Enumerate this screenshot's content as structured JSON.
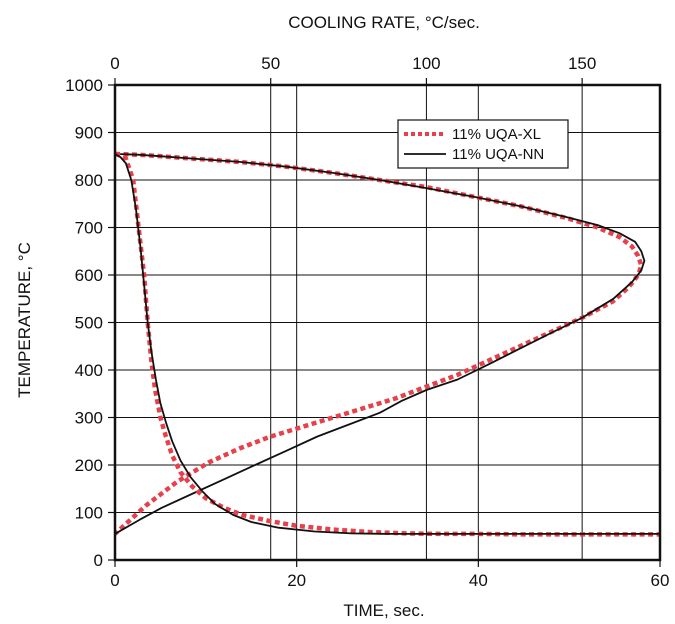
{
  "chart_data": {
    "type": "line",
    "xlabel": "TIME, sec.",
    "ylabel": "TEMPERATURE, °C",
    "x2label": "COOLING RATE, °C/sec.",
    "xlim": [
      0,
      60
    ],
    "x2lim": [
      0,
      175
    ],
    "ylim": [
      0,
      1000
    ],
    "xticks": [
      "0",
      "20",
      "40",
      "60"
    ],
    "x2ticks": [
      "0",
      "50",
      "100",
      "150"
    ],
    "yticks": [
      "0",
      "100",
      "200",
      "300",
      "400",
      "500",
      "600",
      "700",
      "800",
      "900",
      "1000"
    ],
    "grid": true,
    "legend_position": "top-right",
    "colors": {
      "xl": "#e8404a",
      "nn": "#111111"
    },
    "series": [
      {
        "name": "11% UQA-XL",
        "kind": "time",
        "style": "dotted",
        "x": [
          0,
          0.5,
          1.2,
          2.0,
          2.6,
          3.2,
          3.6,
          4.0,
          4.4,
          5.0,
          5.6,
          6.3,
          7.2,
          8.5,
          10,
          12,
          14,
          17,
          20,
          24,
          28,
          32,
          36,
          40,
          45,
          50,
          55,
          60
        ],
        "y": [
          855,
          852,
          845,
          800,
          700,
          600,
          500,
          420,
          360,
          300,
          260,
          220,
          185,
          155,
          130,
          110,
          95,
          82,
          72,
          64,
          59,
          56,
          55,
          55,
          54,
          54,
          54,
          54
        ]
      },
      {
        "name": "11% UQA-NN",
        "kind": "time",
        "style": "solid",
        "x": [
          0,
          0.6,
          1.2,
          1.8,
          2.3,
          2.8,
          3.2,
          3.6,
          4.0,
          4.5,
          5.0,
          5.6,
          6.3,
          7.2,
          8.3,
          9.6,
          11,
          13,
          15,
          18,
          22,
          26,
          30,
          35,
          40,
          45,
          50,
          55,
          60
        ],
        "y": [
          855,
          848,
          835,
          800,
          740,
          660,
          580,
          500,
          440,
          380,
          330,
          290,
          250,
          210,
          175,
          145,
          118,
          95,
          80,
          68,
          60,
          56,
          55,
          55,
          55,
          55,
          55,
          55,
          55
        ]
      },
      {
        "name": "11% UQA-XL",
        "kind": "cooling_rate",
        "style": "dotted",
        "x": [
          0,
          8,
          15,
          25,
          40,
          55,
          70,
          85,
          100,
          115,
          130,
          145,
          155,
          162,
          166,
          168,
          169,
          168,
          165,
          160,
          150,
          140,
          130,
          120,
          110,
          100,
          90,
          80,
          70,
          60,
          50,
          40,
          30,
          20,
          10,
          5,
          0
        ],
        "y": [
          855,
          853,
          850,
          845,
          838,
          828,
          815,
          800,
          785,
          765,
          745,
          720,
          700,
          680,
          660,
          640,
          620,
          600,
          575,
          545,
          510,
          480,
          450,
          420,
          390,
          365,
          340,
          320,
          300,
          280,
          260,
          235,
          205,
          165,
          115,
          85,
          55
        ]
      },
      {
        "name": "11% UQA-NN",
        "kind": "cooling_rate",
        "style": "solid",
        "x": [
          0,
          8,
          15,
          25,
          40,
          55,
          70,
          85,
          100,
          115,
          130,
          145,
          155,
          162,
          167,
          169,
          170,
          169,
          166,
          160,
          150,
          140,
          130,
          120,
          110,
          100,
          92,
          85,
          75,
          65,
          55,
          45,
          35,
          25,
          15,
          8,
          0
        ],
        "y": [
          855,
          853,
          850,
          845,
          838,
          828,
          815,
          800,
          783,
          765,
          745,
          722,
          705,
          688,
          670,
          650,
          630,
          610,
          585,
          550,
          510,
          478,
          445,
          412,
          380,
          358,
          335,
          310,
          285,
          260,
          230,
          200,
          170,
          140,
          110,
          85,
          55
        ]
      }
    ]
  }
}
